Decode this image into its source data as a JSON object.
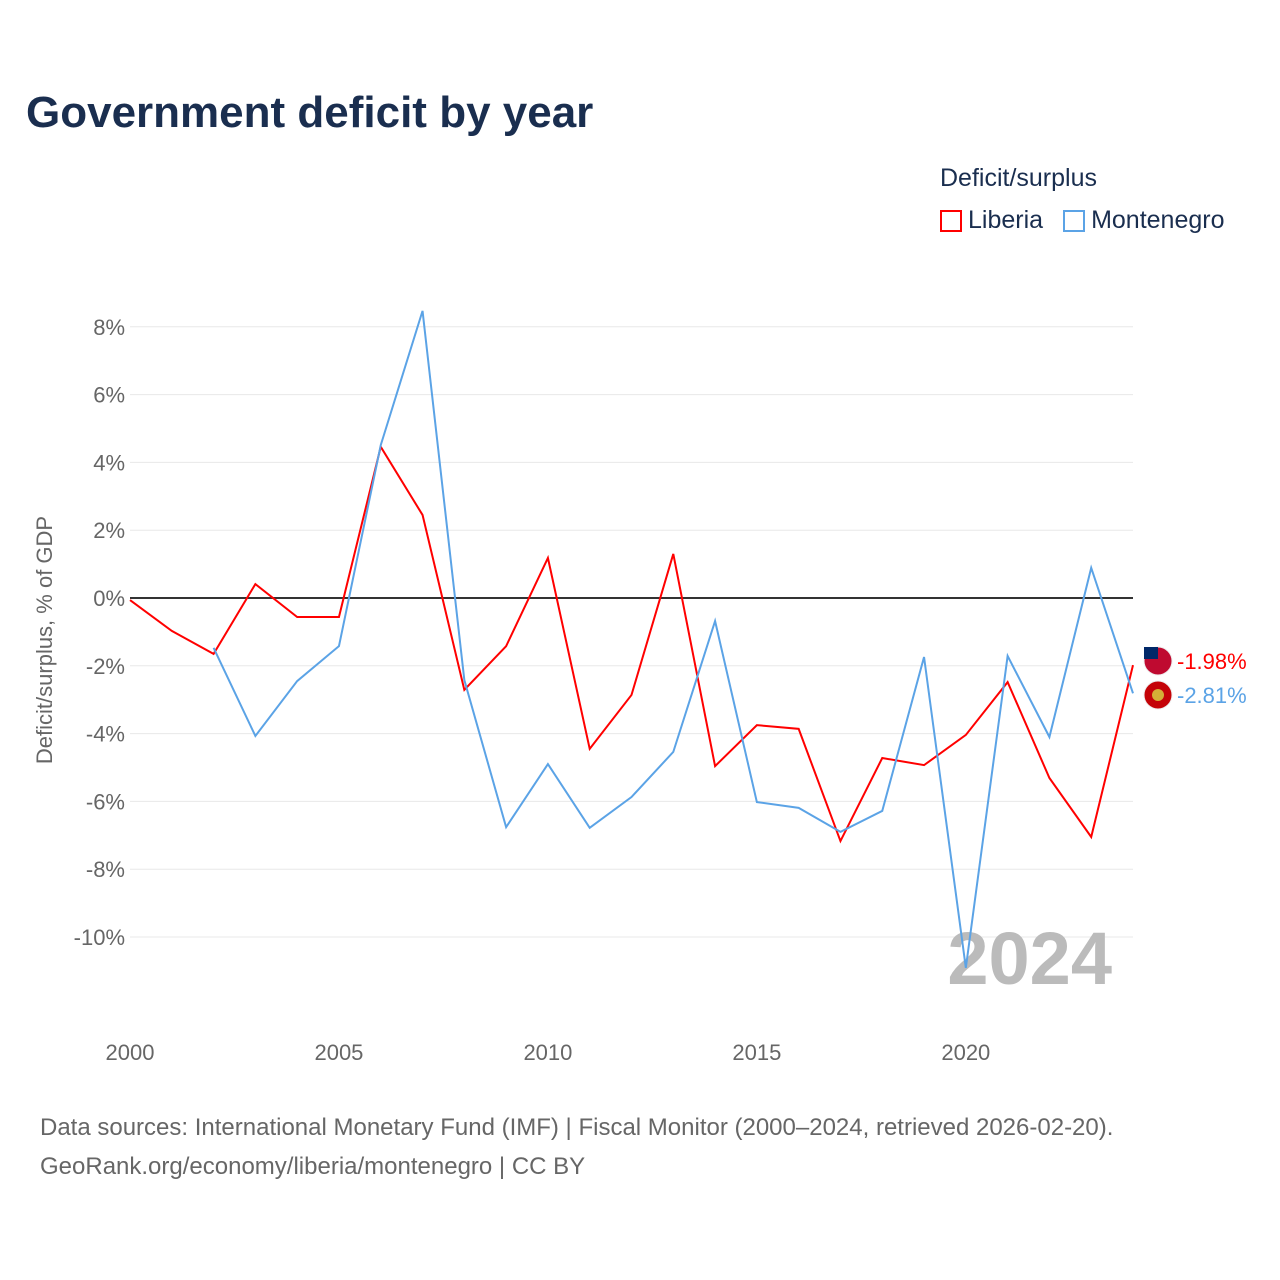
{
  "chart_data": {
    "type": "line",
    "title": "Government deficit by year",
    "xlabel": "",
    "ylabel": "Deficit/surplus, % of GDP",
    "ylim": [
      -12,
      9
    ],
    "xlim": [
      2000,
      2024
    ],
    "yticks": [
      8,
      6,
      4,
      2,
      0,
      -2,
      -4,
      -6,
      -8,
      -10
    ],
    "ytick_labels": [
      "8%",
      "6%",
      "4%",
      "2%",
      "0%",
      "-2%",
      "-4%",
      "-6%",
      "-8%",
      "-10%"
    ],
    "xticks": [
      2000,
      2005,
      2010,
      2015,
      2020
    ],
    "xtick_labels": [
      "2000",
      "2005",
      "2010",
      "2015",
      "2020"
    ],
    "grid": true,
    "legend_title": "Deficit/surplus",
    "legend_position": "top-right",
    "watermark_year": "2024",
    "series": [
      {
        "name": "Liberia",
        "color": "#ff0000",
        "end_label": "-1.98%",
        "x": [
          2000,
          2001,
          2002,
          2003,
          2004,
          2005,
          2006,
          2007,
          2008,
          2009,
          2010,
          2011,
          2012,
          2013,
          2014,
          2015,
          2016,
          2017,
          2018,
          2019,
          2020,
          2021,
          2022,
          2023,
          2024
        ],
        "values": [
          -0.06,
          -0.97,
          -1.65,
          0.41,
          -0.56,
          -0.56,
          4.46,
          2.45,
          -2.71,
          -1.42,
          1.18,
          -4.45,
          -2.86,
          1.3,
          -4.96,
          -3.75,
          -3.86,
          -7.17,
          -4.72,
          -4.93,
          -4.04,
          -2.48,
          -5.31,
          -7.05,
          -1.98
        ]
      },
      {
        "name": "Montenegro",
        "color": "#5ba3e6",
        "end_label": "-2.81%",
        "x": [
          2002,
          2003,
          2004,
          2005,
          2006,
          2007,
          2008,
          2009,
          2010,
          2011,
          2012,
          2013,
          2014,
          2015,
          2016,
          2017,
          2018,
          2019,
          2020,
          2021,
          2022,
          2023,
          2024
        ],
        "values": [
          -1.47,
          -4.07,
          -2.45,
          -1.42,
          4.51,
          8.47,
          -2.42,
          -6.76,
          -4.9,
          -6.78,
          -5.87,
          -4.54,
          -0.68,
          -6.02,
          -6.19,
          -6.9,
          -6.28,
          -1.74,
          -10.91,
          -1.71,
          -4.1,
          0.89,
          -2.81
        ]
      }
    ]
  },
  "footer": {
    "line1": "Data sources: International Monetary Fund (IMF) | Fiscal Monitor (2000–2024, retrieved 2026-02-20).",
    "line2": "GeoRank.org/economy/liberia/montenegro | CC BY"
  }
}
